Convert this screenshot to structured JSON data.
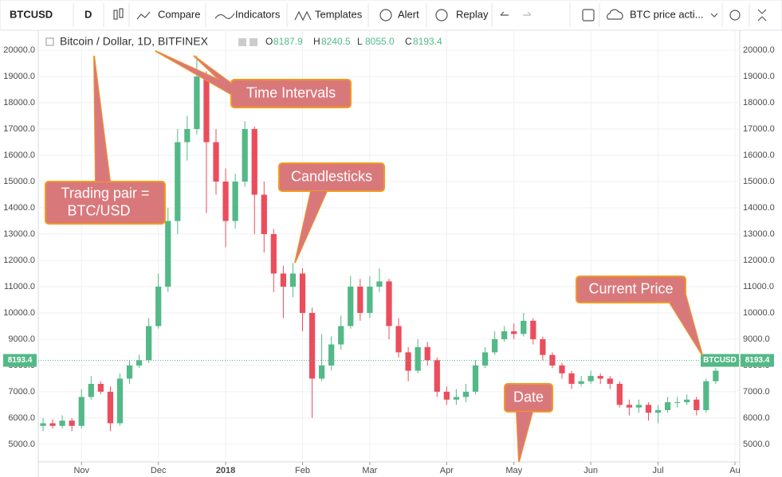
{
  "toolbar": {
    "symbol": "BTCUSD",
    "interval": "D",
    "buttons": [
      "Compare",
      "Indicators",
      "Templates",
      "Alert",
      "Replay"
    ],
    "layout_name": "BTC price acti..."
  },
  "chart_data": {
    "type": "candlestick",
    "title": "Bitcoin / Dollar, 1D, BITFINEX",
    "ohlc_legend": [
      {
        "key": "O",
        "value": "8187.9"
      },
      {
        "key": "H",
        "value": "8240.5"
      },
      {
        "key": "L",
        "value": "8055.0"
      },
      {
        "key": "C",
        "value": "8193.4"
      }
    ],
    "categories": [
      null,
      null,
      null,
      null,
      "Nov",
      null,
      null,
      null,
      null,
      null,
      null,
      null,
      "Dec",
      null,
      null,
      null,
      null,
      null,
      null,
      "2018",
      null,
      null,
      null,
      null,
      null,
      null,
      null,
      "Feb",
      null,
      null,
      null,
      null,
      null,
      null,
      "Mar",
      null,
      null,
      null,
      null,
      null,
      null,
      null,
      "Apr",
      null,
      null,
      null,
      null,
      null,
      null,
      "May",
      null,
      null,
      null,
      null,
      null,
      null,
      null,
      "Jun",
      null,
      null,
      null,
      null,
      null,
      null,
      "Jul",
      null,
      null,
      null,
      null,
      null,
      null,
      null,
      "Au"
    ],
    "open": [
      5700,
      5800,
      5700,
      5900,
      5700,
      6800,
      7300,
      7000,
      5800,
      7500,
      8000,
      8200,
      9500,
      11000,
      13500,
      16500,
      17000,
      19000,
      16500,
      15000,
      13500,
      15000,
      17000,
      14500,
      13000,
      11500,
      11000,
      11500,
      10000,
      7500,
      8000,
      8800,
      9500,
      11000,
      10000,
      11000,
      11200,
      9500,
      8500,
      7800,
      8700,
      8200,
      7000,
      6700,
      6800,
      7000,
      8000,
      8500,
      9000,
      9300,
      9200,
      9700,
      9000,
      8400,
      8000,
      7700,
      7300,
      7400,
      7600,
      7500,
      7300,
      6500,
      6400,
      6500,
      6200,
      6300,
      6600,
      6600,
      6700,
      6300,
      7400,
      8187.9,
      null
    ],
    "high": [
      6000,
      5950,
      6100,
      6000,
      7100,
      7600,
      7400,
      7200,
      7700,
      8200,
      8400,
      9800,
      11500,
      14000,
      17000,
      17500,
      19800,
      19200,
      17000,
      15500,
      15300,
      17300,
      17100,
      15000,
      13200,
      11800,
      11900,
      11700,
      10200,
      9200,
      9100,
      9900,
      11400,
      11300,
      11400,
      11700,
      11300,
      9800,
      8700,
      9000,
      8900,
      8300,
      7200,
      7100,
      7300,
      8200,
      8700,
      9300,
      9500,
      9600,
      10000,
      9800,
      9100,
      8500,
      8100,
      7800,
      7600,
      7800,
      7700,
      7600,
      7400,
      6700,
      6700,
      6600,
      6500,
      6800,
      6800,
      6900,
      6800,
      7500,
      7900,
      8240.5,
      null
    ],
    "low": [
      5500,
      5600,
      5600,
      5500,
      5600,
      6700,
      6900,
      5500,
      5700,
      7300,
      7900,
      8100,
      9400,
      10800,
      13000,
      15800,
      16800,
      13800,
      14500,
      12500,
      13200,
      14800,
      13000,
      12300,
      10800,
      9800,
      10600,
      9300,
      6000,
      7400,
      7800,
      8600,
      9400,
      9700,
      9800,
      10800,
      9000,
      8300,
      7400,
      7700,
      8000,
      6800,
      6500,
      6500,
      6600,
      6900,
      7900,
      8400,
      8900,
      9000,
      9100,
      8800,
      8200,
      7900,
      7500,
      7100,
      7200,
      7300,
      7300,
      7100,
      6400,
      6100,
      6200,
      5900,
      5800,
      6200,
      6400,
      6500,
      6100,
      6200,
      7300,
      8055,
      null
    ],
    "close": [
      5800,
      5700,
      5900,
      5700,
      6800,
      7300,
      7000,
      5800,
      7500,
      8000,
      8200,
      9500,
      11000,
      13500,
      16500,
      17000,
      19000,
      16500,
      15000,
      13500,
      15000,
      17000,
      14500,
      13000,
      11500,
      11000,
      11500,
      10000,
      7500,
      8000,
      8800,
      9500,
      11000,
      10000,
      11000,
      11200,
      9500,
      8500,
      7800,
      8700,
      8200,
      7000,
      6700,
      6800,
      7000,
      8000,
      8500,
      9000,
      9300,
      9200,
      9700,
      9000,
      8400,
      8000,
      7700,
      7300,
      7400,
      7600,
      7500,
      7300,
      6500,
      6400,
      6500,
      6200,
      6300,
      6600,
      6600,
      6700,
      6300,
      7400,
      7800,
      8193.4,
      null
    ],
    "up_color": "#53b987",
    "down_color": "#eb4d5c",
    "ylim": [
      4330,
      20760
    ],
    "yticks": [
      {
        "value": 5000,
        "label": "5000.0"
      },
      {
        "value": 6000,
        "label": "6000.0"
      },
      {
        "value": 7000,
        "label": "7000.0"
      },
      {
        "value": 8000,
        "label": "8000.0"
      },
      {
        "value": 9000,
        "label": "9000.0"
      },
      {
        "value": 10000,
        "label": "10000.0"
      },
      {
        "value": 11000,
        "label": "11000.0"
      },
      {
        "value": 12000,
        "label": "12000.0"
      },
      {
        "value": 13000,
        "label": "13000.0"
      },
      {
        "value": 14000,
        "label": "14000.0"
      },
      {
        "value": 15000,
        "label": "15000.0"
      },
      {
        "value": 16000,
        "label": "16000.0"
      },
      {
        "value": 17000,
        "label": "17000.0"
      },
      {
        "value": 18000,
        "label": "18000.0"
      },
      {
        "value": 19000,
        "label": "19000.0"
      },
      {
        "value": 20000,
        "label": "20000.0"
      }
    ],
    "grid": true,
    "current_price": 8193.4
  },
  "annotations": [
    [
      "Time Intervals"
    ],
    [
      "Trading pair =",
      "BTC/USD"
    ],
    [
      "Candlesticks"
    ],
    [
      "Current Price"
    ],
    [
      "Date"
    ]
  ]
}
